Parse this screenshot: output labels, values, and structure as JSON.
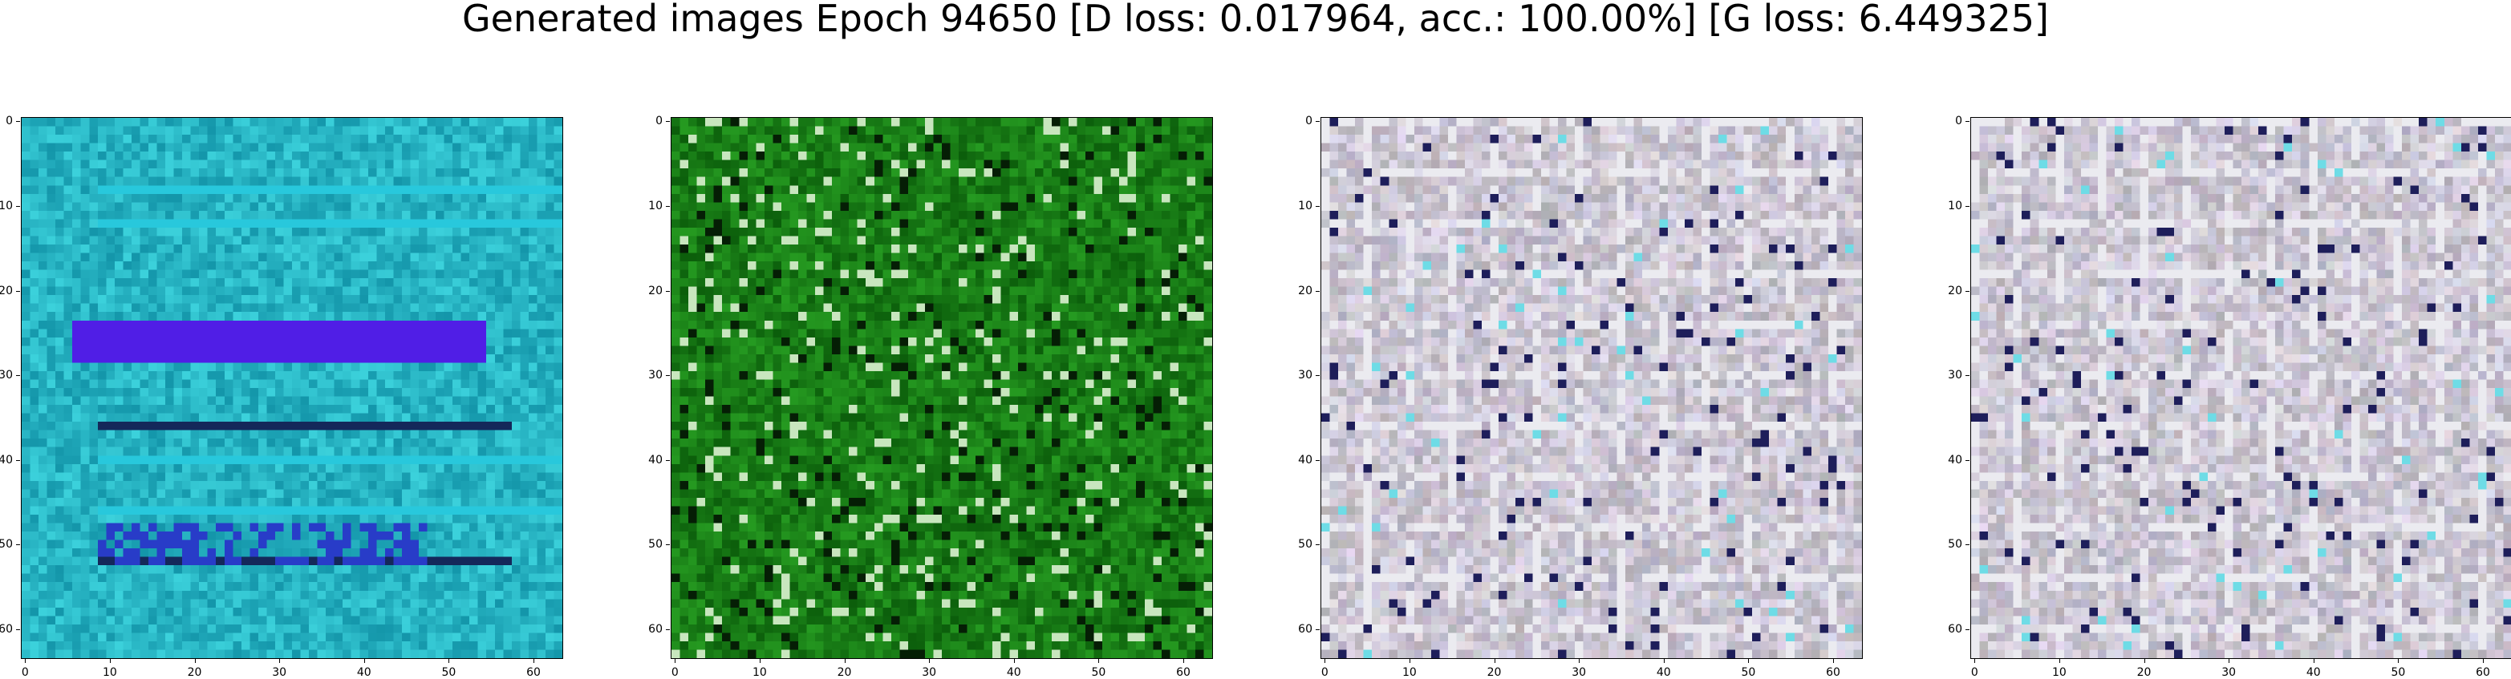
{
  "figure": {
    "title": "Generated images Epoch 94650 [D loss: 0.017964, acc.: 100.00%] [G loss: 6.449325]"
  },
  "panels": [
    {
      "palette": "cyan-blue"
    },
    {
      "palette": "green"
    },
    {
      "palette": "gray-pastel"
    },
    {
      "palette": "gray-pastel"
    }
  ],
  "axes": {
    "xticks": [
      "0",
      "10",
      "20",
      "30",
      "40",
      "50",
      "60"
    ],
    "yticks": [
      "0",
      "10",
      "20",
      "30",
      "40",
      "50",
      "60"
    ],
    "range": [
      0,
      63
    ]
  }
}
